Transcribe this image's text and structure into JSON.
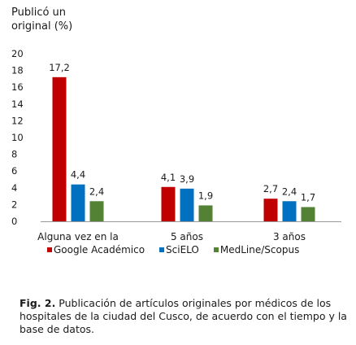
{
  "chart_data": {
    "type": "bar",
    "ylabel": "Publicó un original (%)",
    "ylim": [
      0,
      20
    ],
    "yticks": [
      0,
      2,
      4,
      6,
      8,
      10,
      12,
      14,
      16,
      18,
      20
    ],
    "categories": [
      "Alguna vez en la vida",
      "5 años",
      "3 años"
    ],
    "series": [
      {
        "name": "Google Académico",
        "color": "#c00000",
        "values": [
          17.2,
          4.1,
          2.7
        ],
        "labels": [
          "17,2",
          "4,1",
          "2,7"
        ]
      },
      {
        "name": "SciELO",
        "color": "#0070c0",
        "values": [
          4.4,
          3.9,
          2.4
        ],
        "labels": [
          "4,4",
          "3,9",
          "2,4"
        ]
      },
      {
        "name": "MedLine/Scopus",
        "color": "#548235",
        "values": [
          2.4,
          1.9,
          1.7
        ],
        "labels": [
          "2,4",
          "1,9",
          "1,7"
        ]
      }
    ],
    "grid": false,
    "legend": "bottom"
  },
  "caption": {
    "label": "Fig. 2.",
    "text": " Publicación de artículos originales por médicos de los hospitales de la ciudad del Cusco, de acuerdo con el tiempo y la base de datos."
  }
}
